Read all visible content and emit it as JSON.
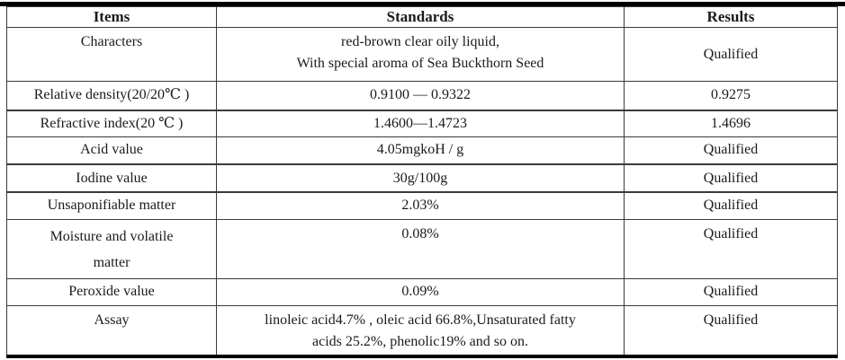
{
  "colors": {
    "text": "#1a1a1a",
    "rule": "#000000",
    "grid_line": "#3a3a3a",
    "background": "#ffffff"
  },
  "table": {
    "columns": [
      "Items",
      "Standards",
      "Results"
    ],
    "rows": [
      {
        "item_lines": [
          "Characters"
        ],
        "standard_lines": [
          "red-brown clear oily liquid,",
          "With special aroma of Sea Buckthorn Seed"
        ],
        "result": "Qualified"
      },
      {
        "item_lines": [
          "Relative density(20/20℃ )"
        ],
        "standard_lines": [
          "0.9100 — 0.9322"
        ],
        "result": "0.9275"
      },
      {
        "item_lines": [
          "Refractive index(20 ℃ )"
        ],
        "standard_lines": [
          "1.4600—1.4723"
        ],
        "result": "1.4696"
      },
      {
        "item_lines": [
          "Acid value"
        ],
        "standard_lines": [
          "4.05mgkoH / g"
        ],
        "result": "Qualified"
      },
      {
        "item_lines": [
          "Iodine value"
        ],
        "standard_lines": [
          "30g/100g"
        ],
        "result": "Qualified"
      },
      {
        "item_lines": [
          "Unsaponifiable matter"
        ],
        "standard_lines": [
          "2.03%"
        ],
        "result": "Qualified"
      },
      {
        "item_lines": [
          "Moisture and volatile",
          "matter"
        ],
        "standard_lines": [
          "0.08%"
        ],
        "result": "Qualified"
      },
      {
        "item_lines": [
          "Peroxide value"
        ],
        "standard_lines": [
          "0.09%"
        ],
        "result": "Qualified"
      },
      {
        "item_lines": [
          "Assay"
        ],
        "standard_lines": [
          "linoleic acid4.7% , oleic acid 66.8%,Unsaturated fatty",
          "acids 25.2%, phenolic19% and so on."
        ],
        "result": "Qualified"
      }
    ]
  }
}
